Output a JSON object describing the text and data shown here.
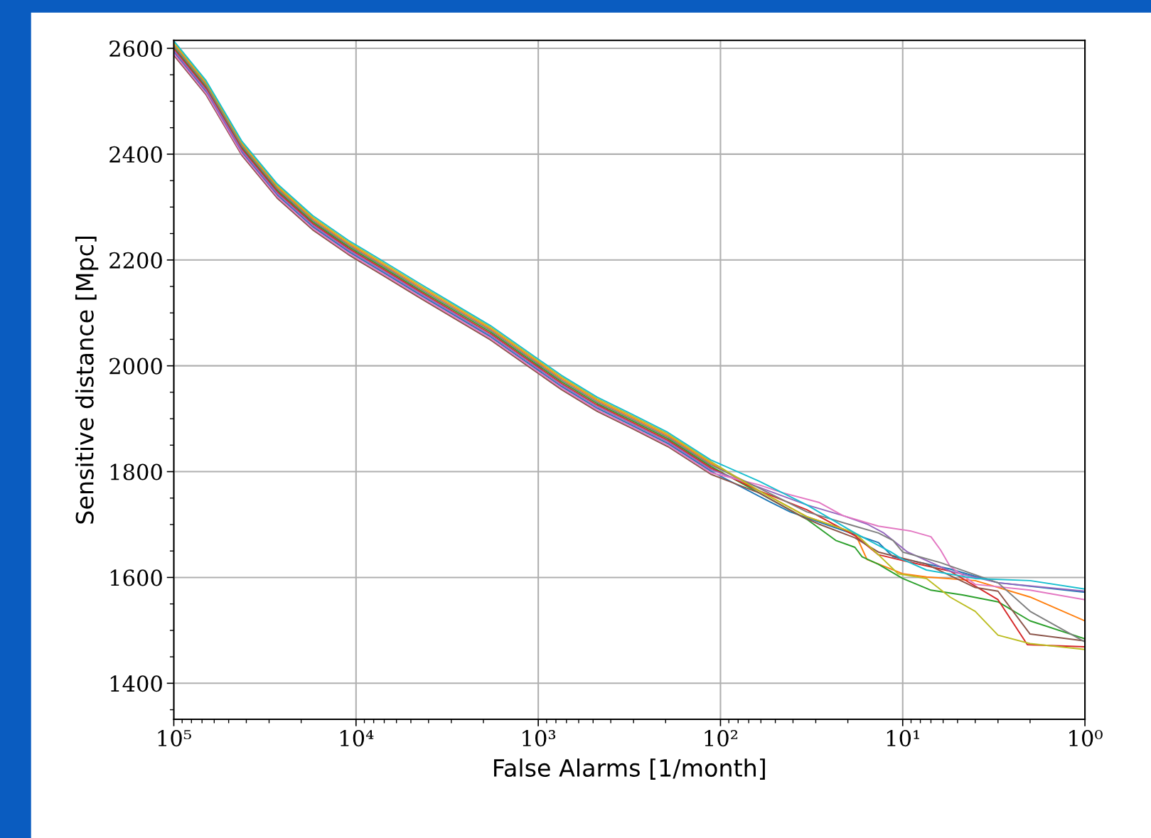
{
  "chart_data": {
    "type": "line",
    "xlabel": "False Alarms [1/month]",
    "ylabel": "Sensitive distance [Mpc]",
    "log": "x",
    "grid": true,
    "marker": "none",
    "line_style": "solid",
    "xlim": [
      100000,
      1
    ],
    "ylim": [
      1332,
      2615
    ],
    "xticks": [
      {
        "value": 100000,
        "label": "10⁵"
      },
      {
        "value": 10000,
        "label": "10⁴"
      },
      {
        "value": 1000,
        "label": "10³"
      },
      {
        "value": 100,
        "label": "10²"
      },
      {
        "value": 10,
        "label": "10¹"
      },
      {
        "value": 1,
        "label": "10⁰"
      }
    ],
    "yticks": [
      1400,
      1600,
      1800,
      2000,
      2200,
      2400,
      2600
    ],
    "series": [
      {
        "color": "#1f77b4",
        "x": [
          100000,
          66500,
          42400,
          27100,
          17300,
          11000,
          7050,
          4500,
          2870,
          1830,
          1170,
          746,
          476,
          304,
          194,
          113,
          53,
          41.5,
          24.8,
          13.6,
          11.3,
          5.5,
          3.0,
          1
        ],
        "values": [
          2593,
          2518,
          2404,
          2323,
          2263,
          2216,
          2176,
          2135,
          2095,
          2055,
          2008,
          1961,
          1920,
          1887,
          1853,
          1801,
          1742,
          1724,
          1697,
          1666,
          1639,
          1616,
          1590,
          1572
        ]
      },
      {
        "color": "#ff7f0e",
        "x": [
          100000,
          66500,
          42400,
          27100,
          17300,
          11000,
          7050,
          4500,
          2870,
          1830,
          1170,
          746,
          476,
          304,
          194,
          113,
          61.5,
          33.6,
          18.3,
          15.7,
          10,
          7.4,
          4.0,
          2.0,
          1
        ],
        "values": [
          2608,
          2533,
          2419,
          2338,
          2278,
          2231,
          2191,
          2150,
          2110,
          2070,
          2023,
          1976,
          1935,
          1902,
          1868,
          1816,
          1764,
          1715,
          1684,
          1634,
          1607,
          1601,
          1594,
          1563,
          1518
        ]
      },
      {
        "color": "#2ca02c",
        "x": [
          100000,
          66500,
          42400,
          27100,
          17300,
          11000,
          7050,
          4500,
          2870,
          1830,
          1170,
          746,
          476,
          304,
          194,
          113,
          61.5,
          33.6,
          23.3,
          18.3,
          16.7,
          13.6,
          10,
          7.0,
          4.7,
          3.0,
          2.0,
          1
        ],
        "values": [
          2602,
          2527,
          2413,
          2332,
          2272,
          2225,
          2185,
          2144,
          2104,
          2064,
          2017,
          1970,
          1929,
          1896,
          1862,
          1810,
          1760,
          1710,
          1670,
          1657,
          1639,
          1625,
          1598,
          1576,
          1567,
          1554,
          1518,
          1484
        ]
      },
      {
        "color": "#d62728",
        "x": [
          100000,
          66500,
          42400,
          27100,
          17300,
          11000,
          7050,
          4500,
          2870,
          1830,
          1170,
          746,
          476,
          304,
          194,
          113,
          61.5,
          33.6,
          18.3,
          13.6,
          10,
          5.5,
          3.0,
          2.07,
          1
        ],
        "values": [
          2599,
          2524,
          2410,
          2329,
          2269,
          2222,
          2182,
          2141,
          2101,
          2061,
          2014,
          1967,
          1926,
          1893,
          1859,
          1807,
          1764,
          1728,
          1679,
          1643,
          1632,
          1612,
          1558,
          1473,
          1469
        ]
      },
      {
        "color": "#9467bd",
        "x": [
          100000,
          66500,
          42400,
          27100,
          17300,
          11000,
          7050,
          4500,
          2870,
          1830,
          1170,
          746,
          476,
          304,
          194,
          113,
          33.6,
          21.3,
          15.7,
          12.7,
          9.4,
          5.5,
          3.0,
          1
        ],
        "values": [
          2596,
          2521,
          2407,
          2326,
          2266,
          2219,
          2179,
          2138,
          2098,
          2058,
          2011,
          1964,
          1923,
          1890,
          1856,
          1804,
          1737,
          1717,
          1701,
          1684,
          1648,
          1612,
          1590,
          1574
        ]
      },
      {
        "color": "#8c564b",
        "x": [
          100000,
          66500,
          42400,
          27100,
          17300,
          11000,
          7050,
          4500,
          2870,
          1830,
          1170,
          746,
          476,
          304,
          194,
          113,
          61.5,
          35.7,
          28.9,
          18.3,
          13.6,
          7.4,
          4.0,
          3.0,
          2.0,
          1
        ],
        "values": [
          2587,
          2512,
          2398,
          2317,
          2257,
          2210,
          2170,
          2129,
          2089,
          2049,
          2002,
          1955,
          1914,
          1881,
          1847,
          1795,
          1760,
          1715,
          1701,
          1675,
          1648,
          1625,
          1581,
          1574,
          1493,
          1480
        ]
      },
      {
        "color": "#e377c2",
        "x": [
          100000,
          66500,
          42400,
          27100,
          17300,
          11000,
          7050,
          4500,
          2870,
          1830,
          1170,
          746,
          476,
          304,
          194,
          113,
          61.5,
          45.5,
          28.9,
          21.3,
          13.6,
          9.1,
          7.0,
          6.2,
          5.5,
          4.0,
          2.0,
          1
        ],
        "values": [
          2590,
          2515,
          2401,
          2320,
          2260,
          2213,
          2173,
          2132,
          2092,
          2052,
          2005,
          1958,
          1917,
          1884,
          1850,
          1798,
          1775,
          1760,
          1742,
          1717,
          1697,
          1688,
          1677,
          1652,
          1621,
          1587,
          1576,
          1558
        ]
      },
      {
        "color": "#7f7f7f",
        "x": [
          100000,
          66500,
          42400,
          27100,
          17300,
          11000,
          7050,
          4500,
          2870,
          1830,
          1170,
          746,
          476,
          304,
          194,
          113,
          61.5,
          33.6,
          18.3,
          13.6,
          11.3,
          10,
          6.2,
          3.0,
          2.0,
          1
        ],
        "values": [
          2605,
          2530,
          2416,
          2335,
          2275,
          2228,
          2188,
          2147,
          2107,
          2067,
          2020,
          1973,
          1932,
          1899,
          1865,
          1813,
          1769,
          1724,
          1697,
          1684,
          1670,
          1648,
          1628,
          1590,
          1536,
          1478
        ]
      },
      {
        "color": "#bcbd22",
        "x": [
          100000,
          66500,
          42400,
          27100,
          17300,
          11000,
          7050,
          4500,
          2870,
          1830,
          1170,
          746,
          476,
          304,
          194,
          113,
          61.5,
          33.6,
          18.3,
          13.6,
          10.6,
          7.4,
          5.5,
          4.0,
          3.0,
          2.0,
          1
        ],
        "values": [
          2611,
          2536,
          2422,
          2341,
          2281,
          2234,
          2194,
          2153,
          2113,
          2073,
          2026,
          1979,
          1938,
          1905,
          1871,
          1819,
          1764,
          1715,
          1684,
          1643,
          1607,
          1598,
          1563,
          1536,
          1491,
          1475,
          1464
        ]
      },
      {
        "color": "#17becf",
        "x": [
          100000,
          66500,
          42400,
          27100,
          17300,
          11000,
          7050,
          4500,
          2870,
          1830,
          1170,
          746,
          476,
          304,
          194,
          113,
          61.5,
          33.6,
          18.3,
          11.6,
          10,
          7.4,
          4.0,
          2.0,
          1
        ],
        "values": [
          2614,
          2539,
          2425,
          2344,
          2284,
          2237,
          2197,
          2156,
          2116,
          2076,
          2029,
          1982,
          1941,
          1908,
          1874,
          1822,
          1782,
          1737,
          1684,
          1648,
          1634,
          1614,
          1598,
          1594,
          1578
        ]
      }
    ]
  }
}
